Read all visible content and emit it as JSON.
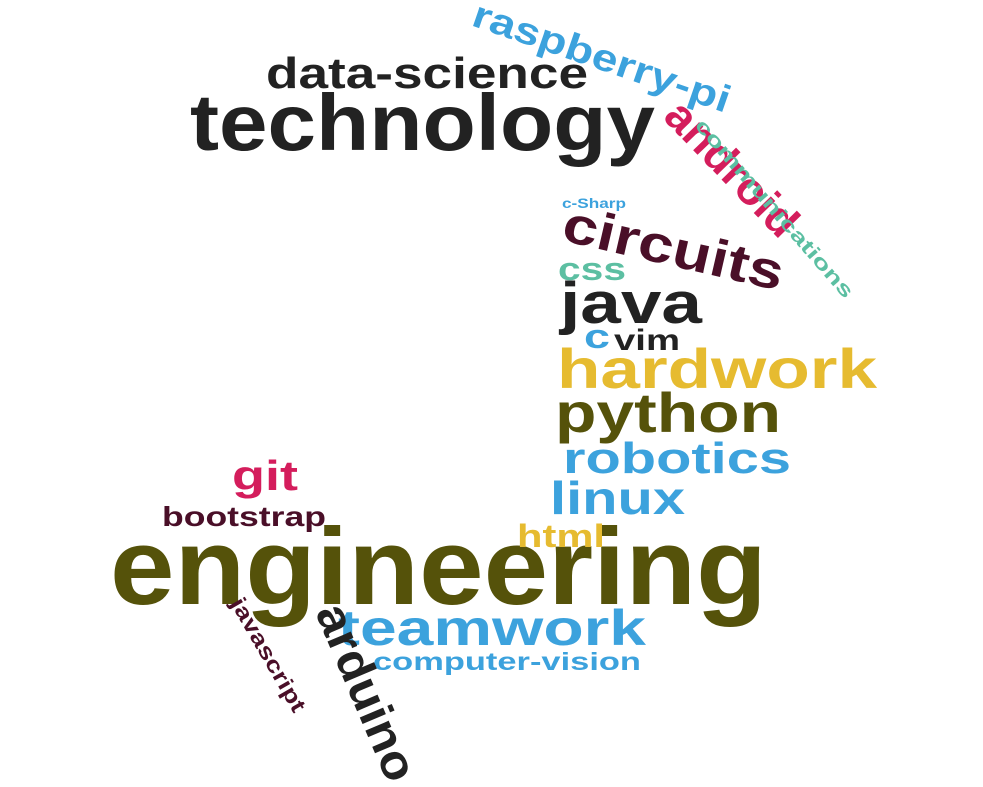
{
  "colors": {
    "dark": "#222222",
    "olive": "#55520a",
    "blue": "#3ca2dd",
    "pink": "#d41d5c",
    "maroon": "#4a0f28",
    "teal": "#5cbfa2",
    "gold": "#e6bb30"
  },
  "words": [
    {
      "text": "engineering",
      "color": "olive"
    },
    {
      "text": "technology",
      "color": "dark"
    },
    {
      "text": "data-science",
      "color": "dark"
    },
    {
      "text": "raspberry-pi",
      "color": "blue"
    },
    {
      "text": "android",
      "color": "pink"
    },
    {
      "text": "communications",
      "color": "teal"
    },
    {
      "text": "c-Sharp",
      "color": "blue"
    },
    {
      "text": "circuits",
      "color": "maroon"
    },
    {
      "text": "css",
      "color": "teal"
    },
    {
      "text": "java",
      "color": "dark"
    },
    {
      "text": "c",
      "color": "blue"
    },
    {
      "text": "vim",
      "color": "dark"
    },
    {
      "text": "hardwork",
      "color": "gold"
    },
    {
      "text": "python",
      "color": "olive"
    },
    {
      "text": "robotics",
      "color": "blue"
    },
    {
      "text": "linux",
      "color": "blue"
    },
    {
      "text": "git",
      "color": "pink"
    },
    {
      "text": "bootstrap",
      "color": "maroon"
    },
    {
      "text": "html",
      "color": "gold"
    },
    {
      "text": "teamwork",
      "color": "blue"
    },
    {
      "text": "computer-vision",
      "color": "blue"
    },
    {
      "text": "arduino",
      "color": "dark"
    },
    {
      "text": "javascript",
      "color": "maroon"
    }
  ]
}
